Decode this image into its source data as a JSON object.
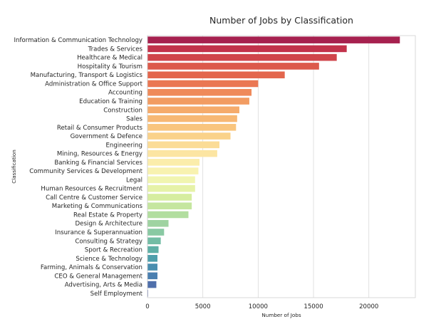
{
  "chart_data": {
    "type": "bar",
    "orientation": "horizontal",
    "title": "Number of Jobs by Classification",
    "xlabel": "Number of Jobs",
    "ylabel": "Classification",
    "xlim": [
      0,
      24200
    ],
    "xticks": [
      0,
      5000,
      10000,
      15000,
      20000
    ],
    "grid": true,
    "categories": [
      "Information & Communication Technology",
      "Trades & Services",
      "Healthcare & Medical",
      "Hospitality & Tourism",
      "Manufacturing, Transport & Logistics",
      "Administration & Office Support",
      "Accounting",
      "Education & Training",
      "Construction",
      "Sales",
      "Retail & Consumer Products",
      "Government & Defence",
      "Engineering",
      "Mining, Resources & Energy",
      "Banking & Financial Services",
      "Community Services & Development",
      "Legal",
      "Human Resources & Recruitment",
      "Call Centre & Customer Service",
      "Marketing & Communications",
      "Real Estate & Property",
      "Design & Architecture",
      "Insurance & Superannuation",
      "Consulting & Strategy",
      "Sport & Recreation",
      "Science & Technology",
      "Farming, Animals & Conservation",
      "CEO & General Management",
      "Advertising, Arts & Media",
      "Self Employment"
    ],
    "values": [
      22800,
      18000,
      17100,
      15500,
      12400,
      10000,
      9400,
      9200,
      8300,
      8100,
      8000,
      7500,
      6500,
      6300,
      4700,
      4600,
      4300,
      4300,
      4000,
      4000,
      3700,
      1900,
      1500,
      1200,
      1000,
      900,
      900,
      900,
      800,
      50
    ],
    "colors": [
      "#a6214f",
      "#c2324b",
      "#d0454b",
      "#dc5a4b",
      "#e3664d",
      "#ea7753",
      "#ef8a5a",
      "#f29c62",
      "#f5ab6b",
      "#f7b874",
      "#f9c57e",
      "#fad28a",
      "#fbdc96",
      "#fce5a2",
      "#fbedab",
      "#f8f2b0",
      "#f1f5b0",
      "#e6f2a8",
      "#d6eda0",
      "#c5e69f",
      "#b2de9f",
      "#9fd3a1",
      "#89c9a3",
      "#73bda5",
      "#5fb0a6",
      "#4e9fab",
      "#4a8fb0",
      "#4a7fb0",
      "#4f6fab",
      "#5460a6"
    ]
  }
}
